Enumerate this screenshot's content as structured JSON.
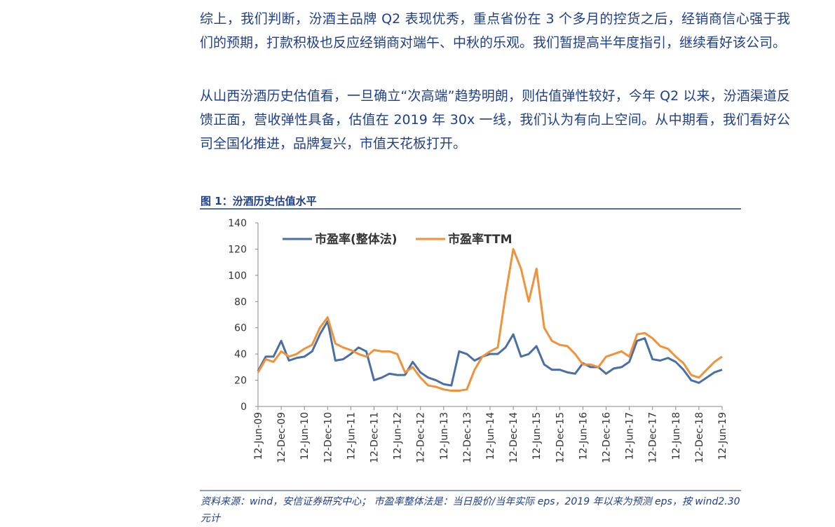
{
  "paragraphs": [
    "综上，我们判断，汾酒主品牌 Q2 表现优秀，重点省份在 3 个多月的控货之后，经销商信心强于我们的预期，打款积极也反应经销商对端午、中秋的乐观。我们暂提高半年度指引，继续看好该公司。",
    "从山西汾酒历史估值看，一旦确立“次高端”趋势明朗，则估值弹性较好，今年 Q2 以来，汾酒渠道反馈正面，营收弹性具备，估值在 2019 年 30x 一线，我们认为有向上空间。从中期看，我们看好公司全国化推进，品牌复兴，市值天花板打开。"
  ],
  "figure_title": "图 1：汾酒历史估值水平",
  "source": "资料来源：wind，安信证券研究中心；  市盈率整体法是：当日股价/当年实际 eps，2019 年以来为预测 eps，按 wind2.30 元计",
  "chart_data": {
    "type": "line",
    "categories": [
      "12-Jun-09",
      null,
      null,
      "12-Dec-09",
      null,
      null,
      "12-Jun-10",
      null,
      null,
      "12-Dec-10",
      null,
      null,
      "12-Jun-11",
      null,
      null,
      "12-Dec-11",
      null,
      null,
      "12-Jun-12",
      null,
      null,
      "12-Dec-12",
      null,
      null,
      "12-Jun-13",
      null,
      null,
      "12-Dec-13",
      null,
      null,
      "12-Jun-14",
      null,
      null,
      "12-Dec-14",
      null,
      null,
      "12-Jun-15",
      null,
      null,
      "12-Dec-15",
      null,
      null,
      "12-Jun-16",
      null,
      null,
      "12-Dec-16",
      null,
      null,
      "12-Jun-17",
      null,
      null,
      "12-Dec-17",
      null,
      null,
      "12-Jun-18",
      null,
      null,
      "12-Dec-18",
      null,
      null,
      "12-Jun-19"
    ],
    "series": [
      {
        "name": "市盈率(整体法)",
        "color": "#4a6fa5",
        "values": [
          27,
          38,
          38,
          50,
          35,
          37,
          38,
          42,
          55,
          65,
          35,
          36,
          40,
          45,
          42,
          20,
          22,
          25,
          24,
          24,
          34,
          26,
          22,
          20,
          17,
          16,
          42,
          40,
          35,
          38,
          40,
          40,
          45,
          55,
          38,
          40,
          46,
          32,
          28,
          28,
          26,
          25,
          33,
          30,
          30,
          25,
          29,
          30,
          34,
          50,
          52,
          36,
          35,
          37,
          34,
          28,
          20,
          18,
          22,
          26,
          28
        ]
      },
      {
        "name": "市盈率TTM",
        "color": "#f0923a",
        "values": [
          26,
          36,
          34,
          42,
          38,
          40,
          44,
          47,
          60,
          68,
          48,
          45,
          43,
          40,
          38,
          43,
          42,
          42,
          40,
          26,
          30,
          22,
          16,
          15,
          13,
          12,
          12,
          13,
          28,
          38,
          42,
          45,
          85,
          120,
          105,
          80,
          105,
          60,
          50,
          47,
          46,
          40,
          32,
          32,
          30,
          38,
          40,
          42,
          38,
          55,
          56,
          52,
          46,
          44,
          38,
          33,
          24,
          22,
          28,
          34,
          38
        ]
      }
    ],
    "ylim": [
      0,
      140
    ],
    "yticks": [
      0,
      20,
      40,
      60,
      80,
      100,
      120,
      140
    ]
  }
}
